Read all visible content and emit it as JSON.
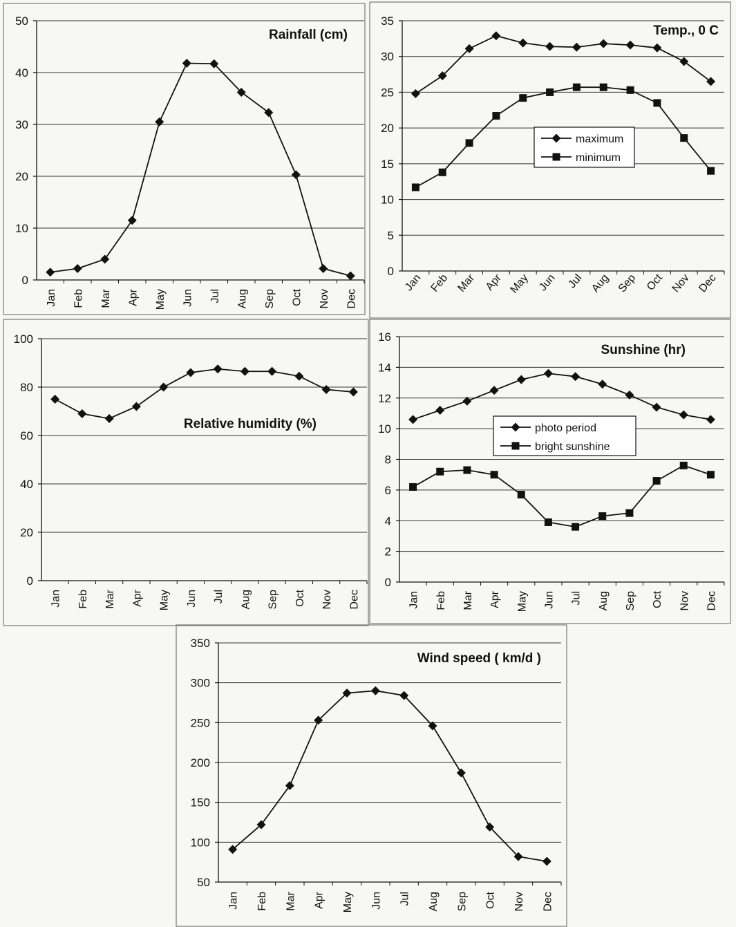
{
  "chart_data": [
    {
      "id": "rainfall",
      "type": "line",
      "title": "Rainfall (cm)",
      "categories": [
        "Jan",
        "Feb",
        "Mar",
        "Apr",
        "May",
        "Jun",
        "Jul",
        "Aug",
        "Sep",
        "Oct",
        "Nov",
        "Dec"
      ],
      "series": [
        {
          "values": [
            1.5,
            2.2,
            4.0,
            11.5,
            30.5,
            41.8,
            41.7,
            36.2,
            32.3,
            20.3,
            2.2,
            0.8
          ],
          "marker": "diamond"
        }
      ],
      "ylim": [
        0,
        50
      ],
      "yticks": [
        0,
        10,
        20,
        30,
        40,
        50
      ],
      "grid": true,
      "legend": "none"
    },
    {
      "id": "temperature",
      "type": "line",
      "title": "Temp., 0 C",
      "categories": [
        "Jan",
        "Feb",
        "Mar",
        "Apr",
        "May",
        "Jun",
        "Jul",
        "Aug",
        "Sep",
        "Oct",
        "Nov",
        "Dec"
      ],
      "series": [
        {
          "name": "maximum",
          "values": [
            24.8,
            27.3,
            31.1,
            32.9,
            31.9,
            31.4,
            31.3,
            31.8,
            31.6,
            31.2,
            29.3,
            26.5
          ],
          "marker": "diamond"
        },
        {
          "name": "minimum",
          "values": [
            11.7,
            13.8,
            17.9,
            21.7,
            24.2,
            25.0,
            25.7,
            25.7,
            25.3,
            23.5,
            18.6,
            14.0
          ],
          "marker": "square"
        }
      ],
      "ylim": [
        0,
        35
      ],
      "yticks": [
        0,
        5,
        10,
        15,
        20,
        25,
        30,
        35
      ],
      "grid": true,
      "legend": "center-right"
    },
    {
      "id": "humidity",
      "type": "line",
      "title": "Relative humidity (%)",
      "categories": [
        "Jan",
        "Feb",
        "Mar",
        "Apr",
        "May",
        "Jun",
        "Jul",
        "Aug",
        "Sep",
        "Oct",
        "Nov",
        "Dec"
      ],
      "series": [
        {
          "values": [
            75,
            69,
            67,
            72,
            80,
            86,
            87.5,
            86.5,
            86.5,
            84.5,
            79,
            78
          ],
          "marker": "diamond"
        }
      ],
      "ylim": [
        0,
        100
      ],
      "yticks": [
        0,
        20,
        40,
        60,
        80,
        100
      ],
      "grid": true,
      "legend": "none"
    },
    {
      "id": "sunshine",
      "type": "line",
      "title": "Sunshine (hr)",
      "categories": [
        "Jan",
        "Feb",
        "Mar",
        "Apr",
        "May",
        "Jun",
        "Jul",
        "Aug",
        "Sep",
        "Oct",
        "Nov",
        "Dec"
      ],
      "series": [
        {
          "name": "photo period",
          "values": [
            10.6,
            11.2,
            11.8,
            12.5,
            13.2,
            13.6,
            13.4,
            12.9,
            12.2,
            11.4,
            10.9,
            10.6
          ],
          "marker": "diamond"
        },
        {
          "name": "bright sunshine",
          "values": [
            6.2,
            7.2,
            7.3,
            7.0,
            5.7,
            3.9,
            3.6,
            4.3,
            4.5,
            6.6,
            7.6,
            7.0
          ],
          "marker": "square"
        }
      ],
      "ylim": [
        0,
        16
      ],
      "yticks": [
        0,
        2,
        4,
        6,
        8,
        10,
        12,
        14,
        16
      ],
      "grid": true,
      "legend": "center-right"
    },
    {
      "id": "wind",
      "type": "line",
      "title": "Wind speed ( km/d )",
      "categories": [
        "Jan",
        "Feb",
        "Mar",
        "Apr",
        "May",
        "Jun",
        "Jul",
        "Aug",
        "Sep",
        "Oct",
        "Nov",
        "Dec"
      ],
      "series": [
        {
          "values": [
            91,
            122,
            171,
            253,
            287,
            290,
            284,
            246,
            187,
            119,
            82,
            76
          ],
          "marker": "diamond"
        }
      ],
      "ylim": [
        50,
        350
      ],
      "yticks": [
        50,
        100,
        150,
        200,
        250,
        300,
        350
      ],
      "grid": true,
      "legend": "none"
    }
  ],
  "colors": {
    "ink": "#111111",
    "grid": "#333333",
    "panel_border": "#777777",
    "page_background": "#f7f7f5"
  }
}
